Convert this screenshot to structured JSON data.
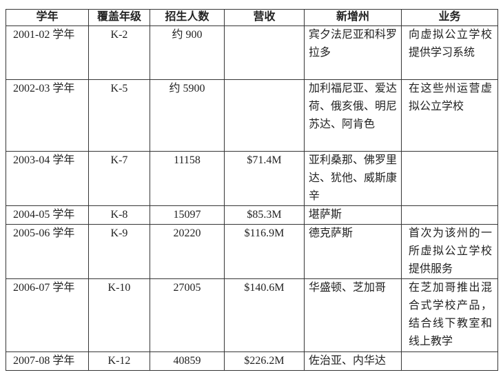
{
  "table": {
    "headers": [
      "学年",
      "覆盖年级",
      "招生人数",
      "营收",
      "新增州",
      "业务"
    ],
    "rows": [
      [
        "2001-02 学年",
        "K-2",
        "约 900",
        "",
        "宾夕法尼亚和科罗拉多",
        "向虚拟公立学校提供学习系统"
      ],
      [
        "2002-03 学年",
        "K-5",
        "约 5900",
        "",
        "加利福尼亚、爱达荷、俄亥俄、明尼苏达、阿肯色",
        "在这些州运营虚拟公立学校"
      ],
      [
        "2003-04 学年",
        "K-7",
        "11158",
        "$71.4M",
        "亚利桑那、佛罗里达、犹他、威斯康辛",
        ""
      ],
      [
        "2004-05 学年",
        "K-8",
        "15097",
        "$85.3M",
        "堪萨斯",
        ""
      ],
      [
        "2005-06 学年",
        "K-9",
        "20220",
        "$116.9M",
        "德克萨斯",
        "首次为该州的一所虚拟公立学校提供服务"
      ],
      [
        "2006-07 学年",
        "K-10",
        "27005",
        "$140.6M",
        "华盛顿、芝加哥",
        "在芝加哥推出混合式学校产品，结合线下教室和线上教学"
      ],
      [
        "2007-08 学年",
        "K-12",
        "40859",
        "$226.2M",
        "佐治亚、内华达",
        ""
      ]
    ]
  }
}
